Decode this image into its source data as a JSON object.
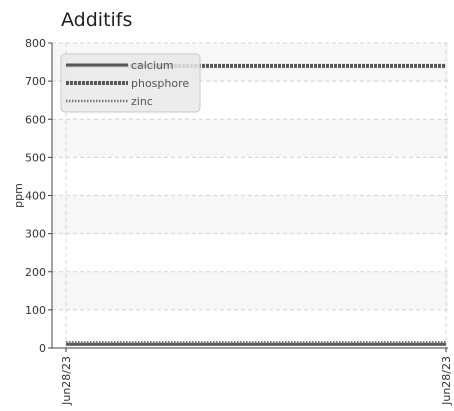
{
  "chart_data": {
    "type": "line",
    "title": "Additifs",
    "xlabel": "",
    "ylabel": "ppm",
    "ylim": [
      0,
      800
    ],
    "yticks": [
      0,
      100,
      200,
      300,
      400,
      500,
      600,
      700,
      800
    ],
    "x": [
      "Jun28/23",
      "Jun28/23"
    ],
    "grid": true,
    "legend_position": "top-left",
    "series": [
      {
        "name": "calcium",
        "style": "solid",
        "color": "#555555",
        "values": [
          10,
          10
        ]
      },
      {
        "name": "phosphore",
        "style": "dashed",
        "color": "#555555",
        "values": [
          740,
          740
        ]
      },
      {
        "name": "zinc",
        "style": "dotted",
        "color": "#777777",
        "values": [
          15,
          15
        ]
      }
    ]
  }
}
